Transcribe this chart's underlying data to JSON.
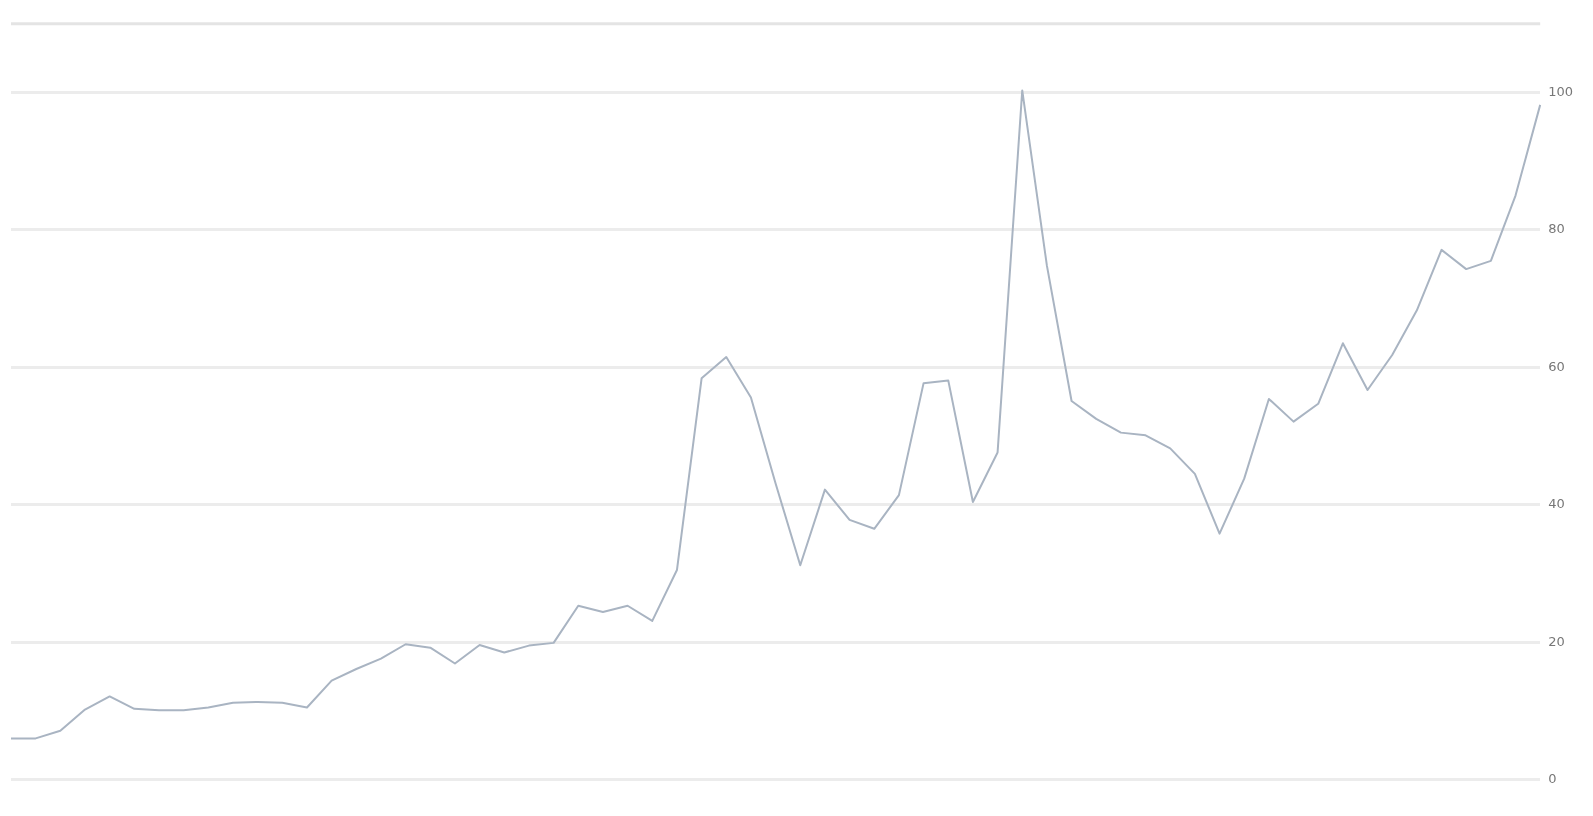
{
  "chart_data": {
    "type": "line",
    "categories": [
      null,
      null,
      null,
      null,
      null,
      null,
      null,
      null,
      null,
      null,
      null,
      null,
      null,
      null,
      null,
      null,
      null,
      null,
      null,
      null,
      null,
      null,
      null,
      null,
      null,
      null,
      null,
      null,
      null,
      null,
      null,
      null,
      null,
      null,
      null,
      null,
      null,
      null,
      null,
      null,
      null,
      null,
      null,
      null,
      null,
      null,
      null,
      null,
      null,
      null,
      null,
      null,
      null,
      null,
      null,
      null,
      null,
      null,
      null,
      null,
      null,
      null,
      null
    ],
    "series": [
      {
        "color": "#a9b4c2",
        "values": [
          6.0,
          6.0,
          7.1,
          10.2,
          12.1,
          10.3,
          10.1,
          10.1,
          10.5,
          11.2,
          11.3,
          11.2,
          10.5,
          14.4,
          16.1,
          17.6,
          19.7,
          19.2,
          16.9,
          19.6,
          18.5,
          19.5,
          19.9,
          25.3,
          24.4,
          25.3,
          23.1,
          30.5,
          58.4,
          61.5,
          55.6,
          43.1,
          31.2,
          42.2,
          37.8,
          36.5,
          41.4,
          57.7,
          58.1,
          40.4,
          47.6,
          100.3,
          74.8,
          55.1,
          52.5,
          50.5,
          50.1,
          48.2,
          44.5,
          35.8,
          43.8,
          55.4,
          52.1,
          54.7,
          63.5,
          56.7,
          61.8,
          68.3,
          77.1,
          74.3,
          75.5,
          85.0,
          98.2
        ]
      }
    ],
    "ylim": [
      0,
      110
    ],
    "yticks": [
      0,
      20,
      40,
      60,
      80,
      100
    ],
    "grid": "y",
    "legend": false,
    "marker": "none",
    "line_style": "solid"
  }
}
